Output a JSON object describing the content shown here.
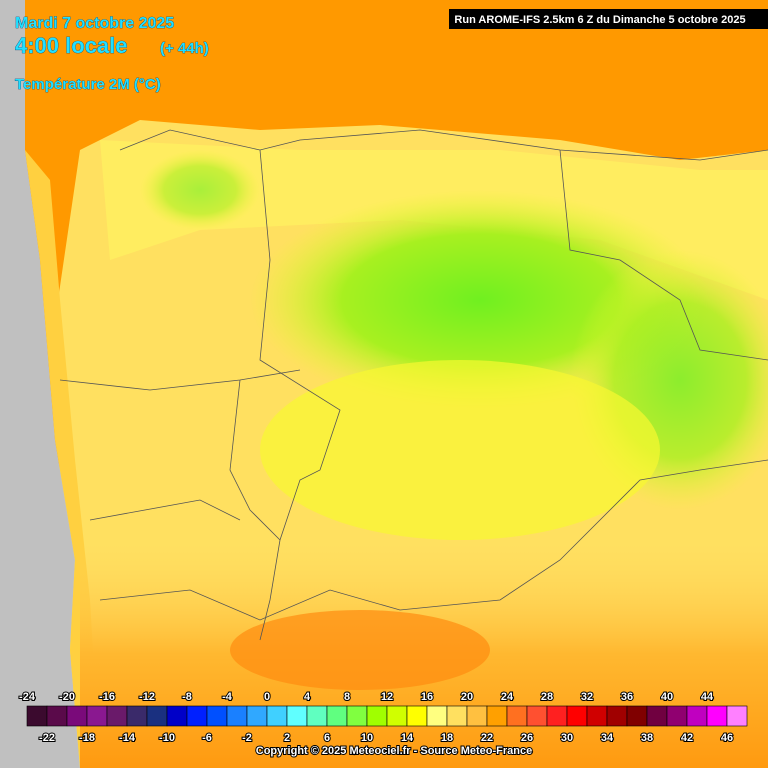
{
  "header": {
    "date": "Mardi 7 octobre 2025",
    "time": "4:00 locale",
    "lead": "(+ 44h)",
    "variable": "Température 2M (°C)"
  },
  "run_info": "Run AROME-IFS 2.5km 6 Z du Dimanche 5 octobre 2025",
  "legend": {
    "ticks": [
      -24,
      -22,
      -20,
      -18,
      -16,
      -14,
      -12,
      -10,
      -8,
      -6,
      -4,
      -2,
      0,
      2,
      4,
      6,
      8,
      10,
      12,
      14,
      16,
      18,
      20,
      22,
      24,
      26,
      28,
      30,
      32,
      34,
      36,
      38,
      40,
      42,
      44,
      46
    ],
    "colors": [
      "#3b0a2e",
      "#5a0a4a",
      "#7a0a7a",
      "#8a1890",
      "#6a1a6a",
      "#3a2a6a",
      "#1a3080",
      "#0000c8",
      "#0020ff",
      "#0050ff",
      "#1a80ff",
      "#30a8ff",
      "#40d0ff",
      "#60ffff",
      "#60ffc0",
      "#60ff80",
      "#80ff40",
      "#a0ff00",
      "#d0ff00",
      "#ffff00",
      "#ffff80",
      "#ffe060",
      "#ffc040",
      "#ffa000",
      "#ff7020",
      "#ff5030",
      "#ff2020",
      "#ff0000",
      "#d00000",
      "#a00000",
      "#800000",
      "#700040",
      "#900070",
      "#c000c0",
      "#ff00ff",
      "#ff80ff"
    ]
  },
  "copyright": "Copyright © 2025 Meteociel.fr - Source Meteo-France"
}
